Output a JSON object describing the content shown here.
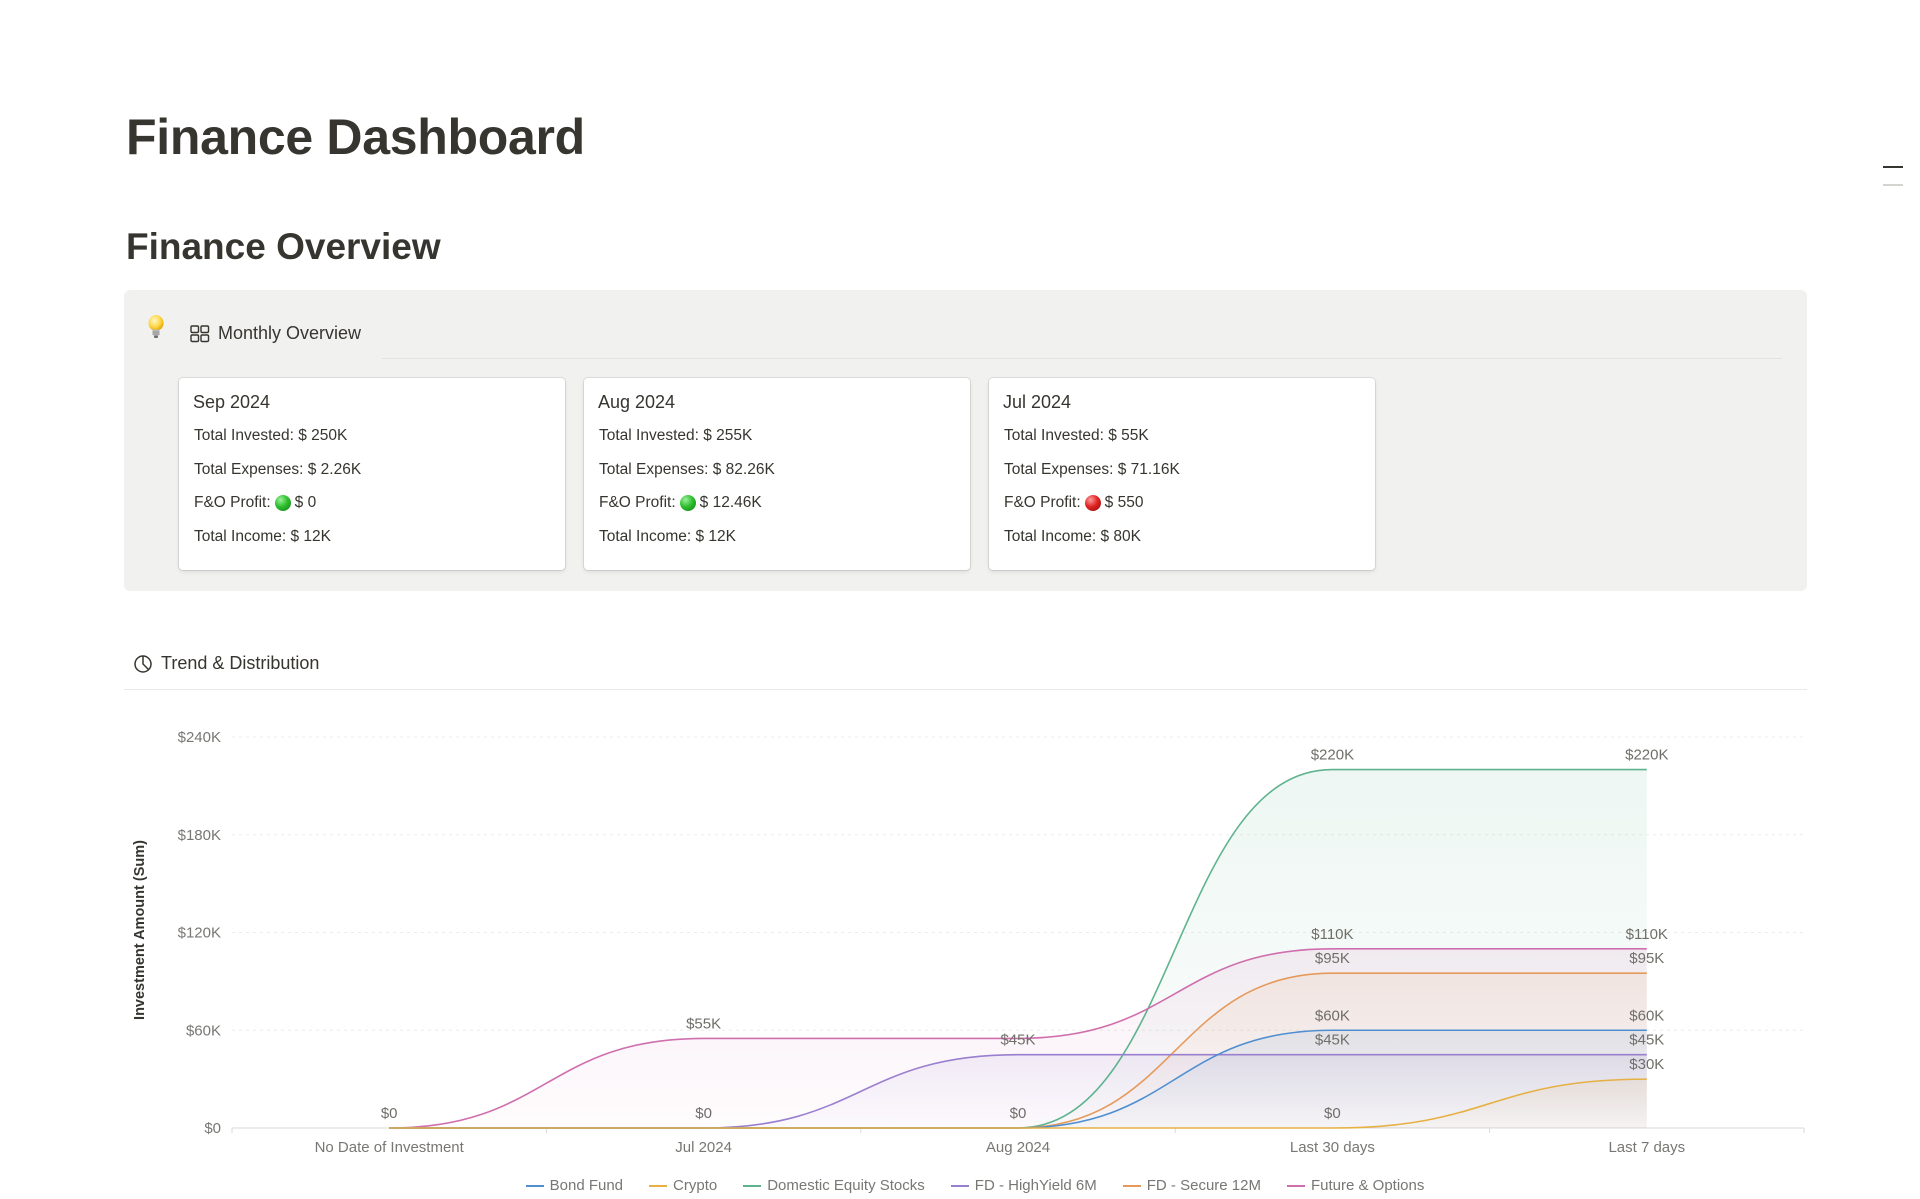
{
  "page_title": "Finance Dashboard",
  "section_title": "Finance Overview",
  "monthly_overview": {
    "icon": "lightbulb-icon",
    "view_icon": "gallery-icon",
    "label": "Monthly Overview",
    "cards": [
      {
        "title": "Sep 2024",
        "invested": "Total Invested: $ 250K",
        "expenses": "Total Expenses: $ 2.26K",
        "fno_label": "F&O Profit:",
        "fno_status": "green",
        "fno_value": "$ 0",
        "income": "Total Income: $ 12K"
      },
      {
        "title": "Aug 2024",
        "invested": "Total Invested: $ 255K",
        "expenses": "Total Expenses: $ 82.26K",
        "fno_label": "F&O Profit:",
        "fno_status": "green",
        "fno_value": "$ 12.46K",
        "income": "Total Income: $ 12K"
      },
      {
        "title": "Jul 2024",
        "invested": "Total Invested: $ 55K",
        "expenses": "Total Expenses: $ 71.16K",
        "fno_label": "F&O Profit:",
        "fno_status": "red",
        "fno_value": "$ 550",
        "income": "Total Income: $ 80K"
      }
    ]
  },
  "trend": {
    "icon": "chart-pie-icon",
    "label": "Trend & Distribution"
  },
  "chart_data": {
    "type": "area",
    "ylabel": "Investment Amount (Sum)",
    "xlabel": "",
    "categories": [
      "No Date of Investment",
      "Jul 2024",
      "Aug 2024",
      "Last 30 days",
      "Last 7 days"
    ],
    "ylim": [
      0,
      240000
    ],
    "yticks": [
      0,
      60000,
      120000,
      180000,
      240000
    ],
    "ytick_labels": [
      "$0",
      "$60K",
      "$120K",
      "$180K",
      "$240K"
    ],
    "grid": true,
    "legend_position": "bottom",
    "series": [
      {
        "name": "Bond Fund",
        "color": "#4f8fd1",
        "values": [
          0,
          0,
          0,
          60000,
          60000
        ]
      },
      {
        "name": "Crypto",
        "color": "#e6b043",
        "values": [
          0,
          0,
          0,
          0,
          30000
        ]
      },
      {
        "name": "Domestic Equity Stocks",
        "color": "#5fb38f",
        "values": [
          0,
          0,
          0,
          220000,
          220000
        ]
      },
      {
        "name": "FD - HighYield 6M",
        "color": "#9a7fcf",
        "values": [
          0,
          0,
          45000,
          45000,
          45000
        ]
      },
      {
        "name": "FD - Secure 12M",
        "color": "#e59a5c",
        "values": [
          0,
          0,
          0,
          95000,
          95000
        ]
      },
      {
        "name": "Future & Options",
        "color": "#cf6fae",
        "values": [
          0,
          55000,
          55000,
          110000,
          110000
        ]
      }
    ],
    "data_labels": [
      {
        "x": 0,
        "text": "$0",
        "value": 0
      },
      {
        "x": 1,
        "text": "$55K",
        "value": 55000
      },
      {
        "x": 1,
        "text": "$0",
        "value": 0
      },
      {
        "x": 2,
        "text": "$45K",
        "value": 45000
      },
      {
        "x": 2,
        "text": "$0",
        "value": 0
      },
      {
        "x": 3,
        "text": "$220K",
        "value": 220000
      },
      {
        "x": 3,
        "text": "$110K",
        "value": 110000
      },
      {
        "x": 3,
        "text": "$95K",
        "value": 95000
      },
      {
        "x": 3,
        "text": "$60K",
        "value": 60000
      },
      {
        "x": 3,
        "text": "$45K",
        "value": 45000
      },
      {
        "x": 3,
        "text": "$0",
        "value": 0
      },
      {
        "x": 4,
        "text": "$220K",
        "value": 220000
      },
      {
        "x": 4,
        "text": "$110K",
        "value": 110000
      },
      {
        "x": 4,
        "text": "$95K",
        "value": 95000
      },
      {
        "x": 4,
        "text": "$60K",
        "value": 60000
      },
      {
        "x": 4,
        "text": "$45K",
        "value": 45000
      },
      {
        "x": 4,
        "text": "$30K",
        "value": 30000
      }
    ]
  }
}
